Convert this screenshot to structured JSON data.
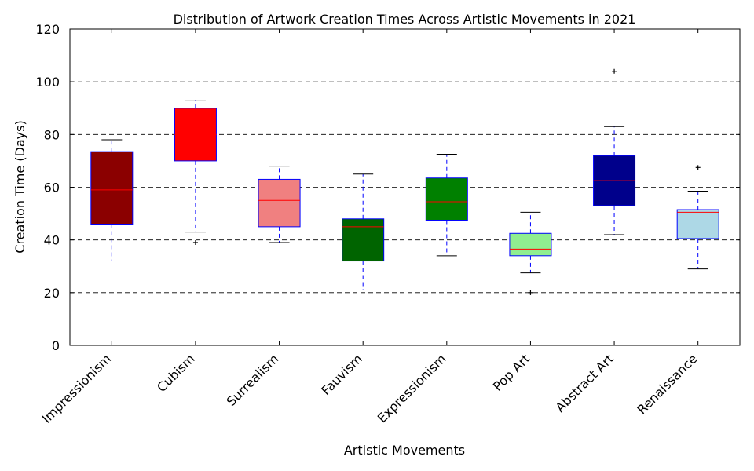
{
  "chart_data": {
    "type": "box",
    "title": "Distribution of Artwork Creation Times Across Artistic Movements in 2021",
    "xlabel": "Artistic Movements",
    "ylabel": "Creation Time (Days)",
    "ylim": [
      0,
      120
    ],
    "yticks": [
      0,
      20,
      40,
      60,
      80,
      100,
      120
    ],
    "grid": "horizontal-dashed",
    "categories": [
      "Impressionism",
      "Cubism",
      "Surrealism",
      "Fauvism",
      "Expressionism",
      "Pop Art",
      "Abstract Art",
      "Renaissance"
    ],
    "boxes": [
      {
        "name": "Impressionism",
        "whisker_low": 32,
        "q1": 46,
        "median": 59,
        "q3": 73.5,
        "whisker_high": 78,
        "outliers": [],
        "color": "#8b0000"
      },
      {
        "name": "Cubism",
        "whisker_low": 43,
        "q1": 70,
        "median": 80,
        "q3": 90,
        "whisker_high": 93,
        "outliers": [
          39
        ],
        "color": "#ff0000"
      },
      {
        "name": "Surrealism",
        "whisker_low": 39,
        "q1": 45,
        "median": 55,
        "q3": 63,
        "whisker_high": 68,
        "outliers": [],
        "color": "#f08080"
      },
      {
        "name": "Fauvism",
        "whisker_low": 21,
        "q1": 32,
        "median": 45,
        "q3": 48,
        "whisker_high": 65,
        "outliers": [],
        "color": "#006400"
      },
      {
        "name": "Expressionism",
        "whisker_low": 34,
        "q1": 47.5,
        "median": 54.5,
        "q3": 63.5,
        "whisker_high": 72.5,
        "outliers": [],
        "color": "#008000"
      },
      {
        "name": "Pop Art",
        "whisker_low": 27.5,
        "q1": 34,
        "median": 36.5,
        "q3": 42.5,
        "whisker_high": 50.5,
        "outliers": [
          20
        ],
        "color": "#90ee90"
      },
      {
        "name": "Abstract Art",
        "whisker_low": 42,
        "q1": 53,
        "median": 62.5,
        "q3": 72,
        "whisker_high": 83,
        "outliers": [
          104
        ],
        "color": "#00008b"
      },
      {
        "name": "Renaissance",
        "whisker_low": 29,
        "q1": 40.5,
        "median": 50.5,
        "q3": 51.5,
        "whisker_high": 58.5,
        "outliers": [
          67.5
        ],
        "color": "#add8e6"
      }
    ],
    "box_edge_color": "#0000ff",
    "whisker_color": "#0000ff",
    "median_color": "#ff0000",
    "grid_color": "#000000"
  }
}
